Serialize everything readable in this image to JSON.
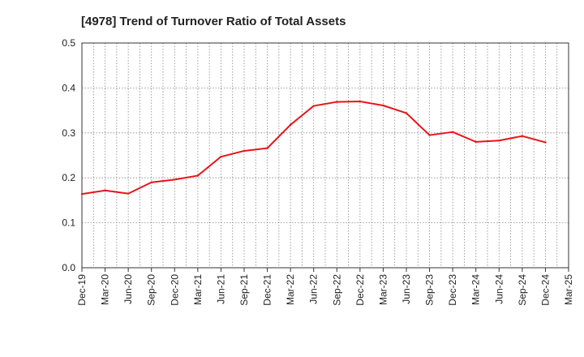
{
  "chart_data": {
    "type": "line",
    "title": "[4978]  Trend of Turnover Ratio of Total Assets",
    "xlabel": "",
    "ylabel": "",
    "ylim": [
      0,
      0.5
    ],
    "y_ticks": [
      "0.0",
      "0.1",
      "0.2",
      "0.3",
      "0.4",
      "0.5"
    ],
    "x_tick_labels": [
      "Dec-19",
      "Mar-20",
      "Jun-20",
      "Sep-20",
      "Dec-20",
      "Mar-21",
      "Jun-21",
      "Sep-21",
      "Dec-21",
      "Mar-22",
      "Jun-22",
      "Sep-22",
      "Dec-22",
      "Mar-23",
      "Jun-23",
      "Sep-23",
      "Dec-23",
      "Mar-24",
      "Jun-24",
      "Sep-24",
      "Dec-24",
      "Mar-25"
    ],
    "grid": true,
    "series": [
      {
        "color": "#e8141b",
        "x": [
          "Dec-19",
          "Mar-20",
          "Jun-20",
          "Sep-20",
          "Dec-20",
          "Mar-21",
          "Jun-21",
          "Sep-21",
          "Dec-21",
          "Mar-22",
          "Jun-22",
          "Sep-22",
          "Dec-22",
          "Mar-23",
          "Jun-23",
          "Sep-23",
          "Dec-23",
          "Mar-24",
          "Jun-24",
          "Sep-24",
          "Dec-24"
        ],
        "values": [
          0.164,
          0.172,
          0.165,
          0.19,
          0.196,
          0.205,
          0.247,
          0.26,
          0.266,
          0.318,
          0.36,
          0.369,
          0.37,
          0.361,
          0.344,
          0.295,
          0.302,
          0.28,
          0.283,
          0.293,
          0.279
        ]
      }
    ]
  }
}
